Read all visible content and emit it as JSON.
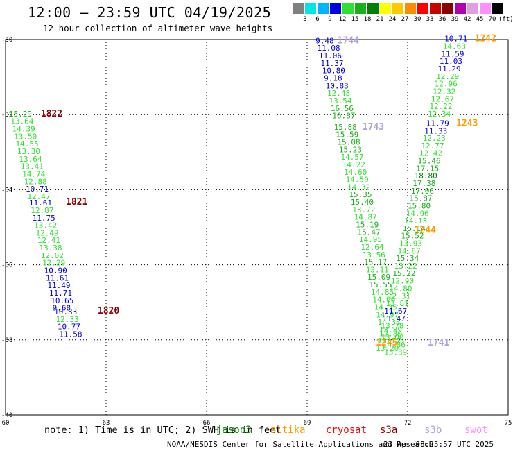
{
  "title": "12:00 – 23:59 UTC 04/19/2025",
  "subtitle": "12 hour collection of altimeter wave heights",
  "scale": {
    "labels": [
      "3",
      "6",
      "9",
      "12",
      "15",
      "18",
      "21",
      "24",
      "27",
      "30",
      "33",
      "36",
      "39",
      "42",
      "45",
      "70",
      "(ft)"
    ],
    "colors": [
      "#808080",
      "#00e5e5",
      "#00b4ff",
      "#0000e0",
      "#30e030",
      "#18b018",
      "#008000",
      "#ffff00",
      "#ffc800",
      "#ff8c00",
      "#ff0000",
      "#c80000",
      "#8b0000",
      "#b000b0",
      "#e0a0e0",
      "#ff90ff",
      "#000000"
    ]
  },
  "axes": {
    "x_ticks": [
      "60",
      "63",
      "66",
      "69",
      "72",
      "75"
    ],
    "y_ticks": [
      "-30",
      "-32",
      "-34",
      "-36",
      "-38",
      "-40"
    ]
  },
  "map_data": {
    "lon_range": [
      60,
      75
    ],
    "lat_range": [
      -30,
      -40
    ],
    "passes": [
      {
        "label": "1822",
        "label_lon": 61.05,
        "label_lat": -32.05,
        "label_color": "#8b0000",
        "points": [
          {
            "lon": 60.1,
            "lat": -32.05,
            "v": "15.29"
          },
          {
            "lon": 60.15,
            "lat": -32.25,
            "v": "13.64"
          },
          {
            "lon": 60.2,
            "lat": -32.45,
            "v": "14.39"
          },
          {
            "lon": 60.25,
            "lat": -32.65,
            "v": "13.50"
          },
          {
            "lon": 60.3,
            "lat": -32.85,
            "v": "14.55"
          },
          {
            "lon": 60.35,
            "lat": -33.05,
            "v": "13.30"
          },
          {
            "lon": 60.4,
            "lat": -33.25,
            "v": "13.64"
          },
          {
            "lon": 60.45,
            "lat": -33.45,
            "v": "13.41"
          },
          {
            "lon": 60.5,
            "lat": -33.65,
            "v": "14.74"
          },
          {
            "lon": 60.55,
            "lat": -33.85,
            "v": "12.88"
          },
          {
            "lon": 60.6,
            "lat": -34.05,
            "v": "10.71"
          },
          {
            "lon": 60.65,
            "lat": -34.25,
            "v": "12.47"
          }
        ]
      },
      {
        "label": "1821",
        "label_lon": 61.8,
        "label_lat": -34.4,
        "label_color": "#8b0000",
        "points": [
          {
            "lon": 60.7,
            "lat": -34.42,
            "v": "11.61"
          },
          {
            "lon": 60.75,
            "lat": -34.62,
            "v": "12.87"
          },
          {
            "lon": 60.8,
            "lat": -34.82,
            "v": "11.75"
          },
          {
            "lon": 60.85,
            "lat": -35.02,
            "v": "13.42"
          },
          {
            "lon": 60.9,
            "lat": -35.22,
            "v": "12.49"
          },
          {
            "lon": 60.95,
            "lat": -35.42,
            "v": "12.41"
          },
          {
            "lon": 61.0,
            "lat": -35.62,
            "v": "13.38"
          },
          {
            "lon": 61.05,
            "lat": -35.82,
            "v": "12.02"
          },
          {
            "lon": 61.1,
            "lat": -36.02,
            "v": "12.29"
          },
          {
            "lon": 61.15,
            "lat": -36.22,
            "v": "10.90"
          },
          {
            "lon": 61.2,
            "lat": -36.42,
            "v": "11.61"
          },
          {
            "lon": 61.25,
            "lat": -36.62,
            "v": "11.49"
          },
          {
            "lon": 61.3,
            "lat": -36.82,
            "v": "11.71"
          },
          {
            "lon": 61.35,
            "lat": -37.02,
            "v": "10.65"
          },
          {
            "lon": 61.4,
            "lat": -37.22,
            "v": "9.68"
          }
        ]
      },
      {
        "label": "1820",
        "label_lon": 62.75,
        "label_lat": -37.3,
        "label_color": "#8b0000",
        "points": [
          {
            "lon": 61.45,
            "lat": -37.32,
            "v": "10.33"
          },
          {
            "lon": 61.5,
            "lat": -37.52,
            "v": "12.33"
          },
          {
            "lon": 61.55,
            "lat": -37.72,
            "v": "10.77"
          },
          {
            "lon": 61.6,
            "lat": -37.92,
            "v": "11.58"
          }
        ]
      },
      {
        "label": "1744",
        "label_lon": 69.9,
        "label_lat": -30.1,
        "label_color": "#b0a0e0",
        "points": [
          {
            "lon": 69.25,
            "lat": -30.1,
            "v": "9.48"
          },
          {
            "lon": 69.3,
            "lat": -30.3,
            "v": "11.08"
          },
          {
            "lon": 69.35,
            "lat": -30.5,
            "v": "11.06"
          },
          {
            "lon": 69.4,
            "lat": -30.7,
            "v": "11.37"
          },
          {
            "lon": 69.45,
            "lat": -30.9,
            "v": "10.80"
          },
          {
            "lon": 69.5,
            "lat": -31.1,
            "v": "9.18"
          },
          {
            "lon": 69.55,
            "lat": -31.3,
            "v": "10.83"
          },
          {
            "lon": 69.6,
            "lat": -31.5,
            "v": "12.48"
          },
          {
            "lon": 69.65,
            "lat": -31.7,
            "v": "13.54"
          },
          {
            "lon": 69.7,
            "lat": -31.9,
            "v": "16.56"
          },
          {
            "lon": 69.75,
            "lat": -32.1,
            "v": "16.87"
          }
        ]
      },
      {
        "label": "1743",
        "label_lon": 70.65,
        "label_lat": -32.4,
        "label_color": "#b0a0e0",
        "points": [
          {
            "lon": 69.8,
            "lat": -32.4,
            "v": "15.88"
          },
          {
            "lon": 69.85,
            "lat": -32.6,
            "v": "15.59"
          },
          {
            "lon": 69.9,
            "lat": -32.8,
            "v": "15.08"
          },
          {
            "lon": 69.95,
            "lat": -33.0,
            "v": "15.23"
          },
          {
            "lon": 70.0,
            "lat": -33.2,
            "v": "14.57"
          },
          {
            "lon": 70.05,
            "lat": -33.4,
            "v": "14.22"
          },
          {
            "lon": 70.1,
            "lat": -33.6,
            "v": "14.60"
          },
          {
            "lon": 70.15,
            "lat": -33.8,
            "v": "14.59"
          },
          {
            "lon": 70.2,
            "lat": -34.0,
            "v": "14.32"
          },
          {
            "lon": 70.25,
            "lat": -34.2,
            "v": "15.35"
          },
          {
            "lon": 70.3,
            "lat": -34.4,
            "v": "15.40"
          },
          {
            "lon": 70.35,
            "lat": -34.6,
            "v": "13.72"
          },
          {
            "lon": 70.4,
            "lat": -34.8,
            "v": "14.87"
          },
          {
            "lon": 70.45,
            "lat": -35.0,
            "v": "15.19"
          },
          {
            "lon": 70.5,
            "lat": -35.2,
            "v": "15.47"
          },
          {
            "lon": 70.55,
            "lat": -35.4,
            "v": "14.95"
          },
          {
            "lon": 70.6,
            "lat": -35.6,
            "v": "12.64"
          },
          {
            "lon": 70.65,
            "lat": -35.8,
            "v": "13.56"
          },
          {
            "lon": 70.7,
            "lat": -36.0,
            "v": "15.17"
          },
          {
            "lon": 70.75,
            "lat": -36.2,
            "v": "13.11"
          },
          {
            "lon": 70.8,
            "lat": -36.4,
            "v": "15.09"
          },
          {
            "lon": 70.85,
            "lat": -36.6,
            "v": "15.55"
          },
          {
            "lon": 70.9,
            "lat": -36.8,
            "v": "14.85"
          },
          {
            "lon": 70.95,
            "lat": -37.0,
            "v": "14.96"
          },
          {
            "lon": 71.0,
            "lat": -37.2,
            "v": "14.35"
          },
          {
            "lon": 71.05,
            "lat": -37.4,
            "v": "14.97"
          },
          {
            "lon": 71.1,
            "lat": -37.6,
            "v": "14.33"
          },
          {
            "lon": 71.15,
            "lat": -37.8,
            "v": "13.89"
          },
          {
            "lon": 71.2,
            "lat": -38.0,
            "v": "13.00"
          },
          {
            "lon": 71.25,
            "lat": -38.2,
            "v": "14.86"
          },
          {
            "lon": 71.3,
            "lat": -38.4,
            "v": "13.39"
          }
        ]
      },
      {
        "label": "1242",
        "label_lon": 74.0,
        "label_lat": -30.05,
        "label_color": "#ff9900",
        "points": [
          {
            "lon": 73.1,
            "lat": -30.05,
            "v": "10.71"
          },
          {
            "lon": 73.05,
            "lat": -30.25,
            "v": "14.63"
          },
          {
            "lon": 73.0,
            "lat": -30.45,
            "v": "11.59"
          },
          {
            "lon": 72.95,
            "lat": -30.65,
            "v": "11.03"
          },
          {
            "lon": 72.9,
            "lat": -30.85,
            "v": "11.29"
          },
          {
            "lon": 72.85,
            "lat": -31.05,
            "v": "12.29"
          },
          {
            "lon": 72.8,
            "lat": -31.25,
            "v": "12.96"
          },
          {
            "lon": 72.75,
            "lat": -31.45,
            "v": "12.32"
          },
          {
            "lon": 72.7,
            "lat": -31.65,
            "v": "12.67"
          },
          {
            "lon": 72.65,
            "lat": -31.85,
            "v": "12.22"
          },
          {
            "lon": 72.6,
            "lat": -32.05,
            "v": "12.34"
          }
        ]
      },
      {
        "label": "1243",
        "label_lon": 73.45,
        "label_lat": -32.3,
        "label_color": "#ff9900",
        "points": [
          {
            "lon": 72.55,
            "lat": -32.3,
            "v": "11.79"
          },
          {
            "lon": 72.5,
            "lat": -32.5,
            "v": "11.33"
          },
          {
            "lon": 72.45,
            "lat": -32.7,
            "v": "12.23"
          },
          {
            "lon": 72.4,
            "lat": -32.9,
            "v": "12.77"
          },
          {
            "lon": 72.35,
            "lat": -33.1,
            "v": "12.42"
          },
          {
            "lon": 72.3,
            "lat": -33.3,
            "v": "15.46"
          },
          {
            "lon": 72.25,
            "lat": -33.5,
            "v": "17.15"
          },
          {
            "lon": 72.2,
            "lat": -33.7,
            "v": "18.80"
          },
          {
            "lon": 72.15,
            "lat": -33.9,
            "v": "17.38"
          },
          {
            "lon": 72.1,
            "lat": -34.1,
            "v": "17.06"
          },
          {
            "lon": 72.05,
            "lat": -34.3,
            "v": "15.87"
          },
          {
            "lon": 72.0,
            "lat": -34.5,
            "v": "15.80"
          },
          {
            "lon": 71.95,
            "lat": -34.7,
            "v": "14.96"
          },
          {
            "lon": 71.9,
            "lat": -34.9,
            "v": "14.13"
          },
          {
            "lon": 71.85,
            "lat": -35.1,
            "v": "15.14"
          }
        ]
      },
      {
        "label": "1244",
        "label_lon": 72.2,
        "label_lat": -35.15,
        "label_color": "#ff9900",
        "points": [
          {
            "lon": 71.8,
            "lat": -35.3,
            "v": "15.52"
          },
          {
            "lon": 71.75,
            "lat": -35.5,
            "v": "13.93"
          },
          {
            "lon": 71.7,
            "lat": -35.7,
            "v": "14.67"
          },
          {
            "lon": 71.65,
            "lat": -35.9,
            "v": "15.34"
          },
          {
            "lon": 71.6,
            "lat": -36.1,
            "v": "13.22"
          },
          {
            "lon": 71.55,
            "lat": -36.3,
            "v": "15.22"
          },
          {
            "lon": 71.5,
            "lat": -36.5,
            "v": "12.90"
          },
          {
            "lon": 71.45,
            "lat": -36.7,
            "v": "14.80"
          },
          {
            "lon": 71.4,
            "lat": -36.9,
            "v": "12.31"
          },
          {
            "lon": 71.35,
            "lat": -37.1,
            "v": "13.81"
          },
          {
            "lon": 71.3,
            "lat": -37.3,
            "v": "11.67"
          },
          {
            "lon": 71.25,
            "lat": -37.5,
            "v": "11.47"
          }
        ]
      },
      {
        "label": "1245",
        "label_lon": 71.05,
        "label_lat": -38.15,
        "label_color": "#ff9900",
        "points": [
          {
            "lon": 71.2,
            "lat": -37.7,
            "v": "13.78"
          },
          {
            "lon": 71.15,
            "lat": -37.9,
            "v": "12.80"
          },
          {
            "lon": 71.1,
            "lat": -38.1,
            "v": "13.77"
          },
          {
            "lon": 71.05,
            "lat": -38.3,
            "v": "13.20"
          }
        ]
      },
      {
        "label": "1741",
        "label_lon": 72.6,
        "label_lat": -38.15,
        "label_color": "#b0a0e0",
        "points": []
      }
    ]
  },
  "note": "note: 1) Time is in UTC; 2) SWH is in feet",
  "satellites": [
    {
      "name": "jason3",
      "color": "#008000"
    },
    {
      "name": "altika",
      "color": "#ff9900"
    },
    {
      "name": "cryosat",
      "color": "#ff0000"
    },
    {
      "name": "s3a",
      "color": "#8b0000"
    },
    {
      "name": "s3b",
      "color": "#b0a0e0"
    },
    {
      "name": "swot",
      "color": "#ff90ff"
    }
  ],
  "footer": {
    "left": "NOAA/NESDIS Center for Satellite Applications and Research",
    "right": "23 Apr 08:25:57 UTC 2025"
  }
}
